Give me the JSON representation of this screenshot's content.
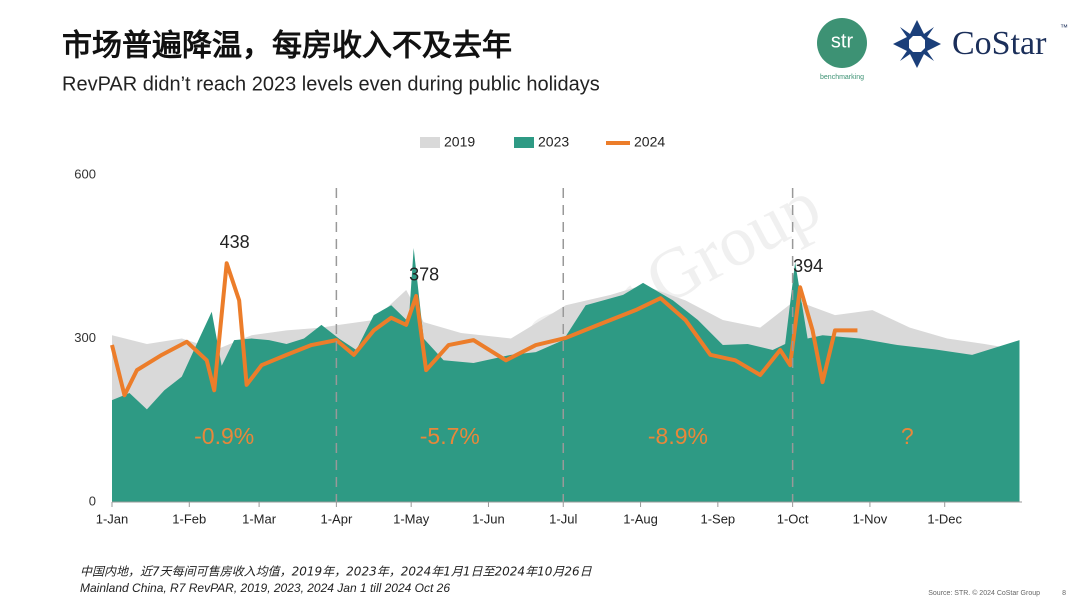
{
  "header": {
    "title": "市场普遍降温，每房收入不及去年",
    "subtitle": "RevPAR didn’t reach 2023 levels even during public holidays"
  },
  "logos": {
    "str": "str",
    "str_tag": "benchmarking",
    "costar": "CoStar",
    "tm": "™"
  },
  "watermark": "CoStar Group",
  "chart_data": {
    "type": "area",
    "xlim": [
      0,
      365
    ],
    "xticks": [
      {
        "value": 0,
        "label": "1-Jan"
      },
      {
        "value": 31,
        "label": "1-Feb"
      },
      {
        "value": 59,
        "label": "1-Mar"
      },
      {
        "value": 90,
        "label": "1-Apr"
      },
      {
        "value": 120,
        "label": "1-May"
      },
      {
        "value": 151,
        "label": "1-Jun"
      },
      {
        "value": 181,
        "label": "1-Jul"
      },
      {
        "value": 212,
        "label": "1-Aug"
      },
      {
        "value": 243,
        "label": "1-Sep"
      },
      {
        "value": 273,
        "label": "1-Oct"
      },
      {
        "value": 304,
        "label": "1-Nov"
      },
      {
        "value": 334,
        "label": "1-Dec"
      }
    ],
    "ylim": [
      0,
      600
    ],
    "yticks": [
      0,
      300,
      600
    ],
    "grid": false,
    "series": [
      {
        "name": "2019",
        "color": "#d9d9d9",
        "kind": "area",
        "x": [
          0,
          14,
          28,
          42,
          56,
          70,
          84,
          91,
          105,
          118,
          125,
          140,
          160,
          182,
          200,
          213,
          230,
          245,
          260,
          274,
          290,
          305,
          320,
          335,
          350,
          364
        ],
        "values": [
          306,
          290,
          300,
          280,
          306,
          315,
          320,
          325,
          334,
          389,
          330,
          310,
          300,
          361,
          380,
          398,
          370,
          334,
          320,
          370,
          343,
          352,
          320,
          300,
          290,
          279
        ]
      },
      {
        "name": "2023",
        "color": "#2e9a84",
        "kind": "area",
        "x": [
          0,
          7,
          14,
          21,
          28,
          35,
          40,
          44,
          49,
          56,
          63,
          70,
          77,
          84,
          91,
          98,
          105,
          112,
          119,
          121,
          125,
          133,
          145,
          160,
          170,
          181,
          190,
          205,
          213,
          225,
          235,
          245,
          255,
          265,
          270,
          274,
          279,
          285,
          300,
          315,
          330,
          345,
          364
        ],
        "values": [
          187,
          200,
          170,
          205,
          230,
          300,
          349,
          250,
          297,
          300,
          297,
          290,
          300,
          325,
          300,
          279,
          343,
          361,
          330,
          466,
          300,
          260,
          255,
          270,
          275,
          297,
          361,
          380,
          402,
          370,
          334,
          288,
          290,
          279,
          290,
          440,
          300,
          306,
          300,
          288,
          280,
          270,
          297
        ]
      },
      {
        "name": "2024",
        "color": "#ec7d2a",
        "kind": "line",
        "x": [
          0,
          5,
          10,
          20,
          30,
          38,
          41,
          46,
          51,
          54,
          60,
          70,
          80,
          90,
          97,
          105,
          112,
          118,
          122,
          126,
          135,
          145,
          158,
          170,
          182,
          195,
          210,
          220,
          230,
          240,
          250,
          260,
          268,
          272,
          276,
          281,
          285,
          290,
          299
        ],
        "values": [
          288,
          196,
          242,
          270,
          294,
          260,
          205,
          438,
          370,
          215,
          251,
          270,
          288,
          297,
          270,
          315,
          338,
          325,
          378,
          242,
          288,
          297,
          260,
          288,
          301,
          325,
          352,
          374,
          334,
          270,
          260,
          233,
          279,
          251,
          394,
          315,
          220,
          315,
          315
        ],
        "value_labels": [
          null,
          null,
          null,
          null,
          null,
          null,
          null,
          "438",
          null,
          null,
          null,
          null,
          null,
          null,
          null,
          null,
          null,
          null,
          "378",
          null,
          null,
          null,
          null,
          null,
          null,
          null,
          null,
          null,
          null,
          null,
          null,
          null,
          null,
          null,
          "394",
          null,
          null,
          null,
          null
        ]
      }
    ],
    "quarter_changes": [
      "-0.9%",
      "-5.7%",
      "-8.9%",
      "?"
    ]
  },
  "footer": {
    "note_cn": "中国内地，近7天每间可售房收入均值，2019年，2023年，2024年1月1日至2024年10月26日",
    "note_en": "Mainland China, R7 RevPAR, 2019, 2023, 2024 Jan 1 till 2024 Oct 26",
    "source": "Source: STR. © 2024 CoStar Group",
    "page": "8"
  }
}
